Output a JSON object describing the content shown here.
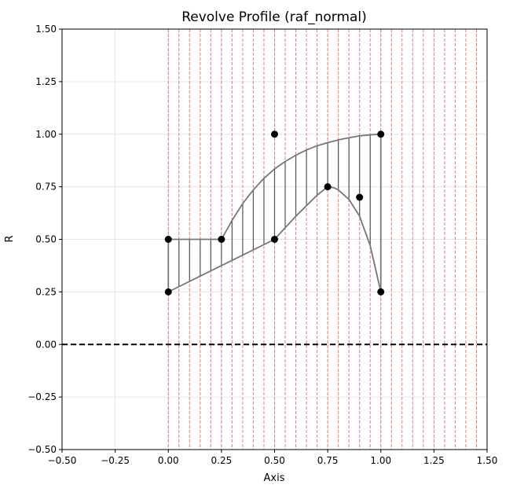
{
  "chart_data": {
    "type": "line",
    "title": "Revolve Profile (raf_normal)",
    "xlabel": "Axis",
    "ylabel": "R",
    "xlim": [
      -0.5,
      1.5
    ],
    "ylim": [
      -0.5,
      1.5
    ],
    "x_ticks": [
      "−0.50",
      "−0.25",
      "0.00",
      "0.25",
      "0.50",
      "0.75",
      "1.00",
      "1.25",
      "1.50"
    ],
    "y_ticks": [
      "−0.50",
      "−0.25",
      "0.00",
      "0.25",
      "0.50",
      "0.75",
      "1.00",
      "1.25",
      "1.50"
    ],
    "grid": true,
    "axis_line": {
      "y": 0.0,
      "style": "dashed",
      "color": "#000000"
    },
    "control_points": [
      {
        "x": 0.0,
        "y": 0.5
      },
      {
        "x": 0.0,
        "y": 0.25
      },
      {
        "x": 0.25,
        "y": 0.5
      },
      {
        "x": 0.5,
        "y": 1.0
      },
      {
        "x": 0.5,
        "y": 0.5
      },
      {
        "x": 0.75,
        "y": 0.75
      },
      {
        "x": 0.9,
        "y": 0.7
      },
      {
        "x": 1.0,
        "y": 1.0
      },
      {
        "x": 1.0,
        "y": 0.25
      }
    ],
    "upper_curve": [
      {
        "x": 0.0,
        "y": 0.5
      },
      {
        "x": 0.25,
        "y": 0.5
      },
      {
        "x": 0.3,
        "y": 0.59
      },
      {
        "x": 0.35,
        "y": 0.67
      },
      {
        "x": 0.4,
        "y": 0.735
      },
      {
        "x": 0.45,
        "y": 0.79
      },
      {
        "x": 0.5,
        "y": 0.835
      },
      {
        "x": 0.55,
        "y": 0.87
      },
      {
        "x": 0.6,
        "y": 0.9
      },
      {
        "x": 0.65,
        "y": 0.925
      },
      {
        "x": 0.7,
        "y": 0.945
      },
      {
        "x": 0.75,
        "y": 0.96
      },
      {
        "x": 0.8,
        "y": 0.973
      },
      {
        "x": 0.85,
        "y": 0.983
      },
      {
        "x": 0.9,
        "y": 0.992
      },
      {
        "x": 0.95,
        "y": 0.997
      },
      {
        "x": 1.0,
        "y": 1.0
      }
    ],
    "lower_curve": [
      {
        "x": 0.0,
        "y": 0.25
      },
      {
        "x": 0.5,
        "y": 0.5
      },
      {
        "x": 0.55,
        "y": 0.555
      },
      {
        "x": 0.6,
        "y": 0.61
      },
      {
        "x": 0.65,
        "y": 0.66
      },
      {
        "x": 0.7,
        "y": 0.71
      },
      {
        "x": 0.75,
        "y": 0.75
      },
      {
        "x": 0.78,
        "y": 0.745
      },
      {
        "x": 0.8,
        "y": 0.735
      },
      {
        "x": 0.85,
        "y": 0.69
      },
      {
        "x": 0.9,
        "y": 0.61
      },
      {
        "x": 0.95,
        "y": 0.47
      },
      {
        "x": 1.0,
        "y": 0.25
      }
    ],
    "slice_x": [
      0.0,
      0.05,
      0.1,
      0.15,
      0.2,
      0.25,
      0.3,
      0.35,
      0.4,
      0.45,
      0.5,
      0.55,
      0.6,
      0.65,
      0.7,
      0.75,
      0.8,
      0.85,
      0.9,
      0.95,
      1.0,
      1.05,
      1.1,
      1.15,
      1.2,
      1.25,
      1.3,
      1.35,
      1.4,
      1.45
    ],
    "colors": {
      "curve": "#777777",
      "slice": "#555555",
      "slice_guide": "#e06666",
      "point": "#000000",
      "grid": "#e6e6e6"
    }
  }
}
